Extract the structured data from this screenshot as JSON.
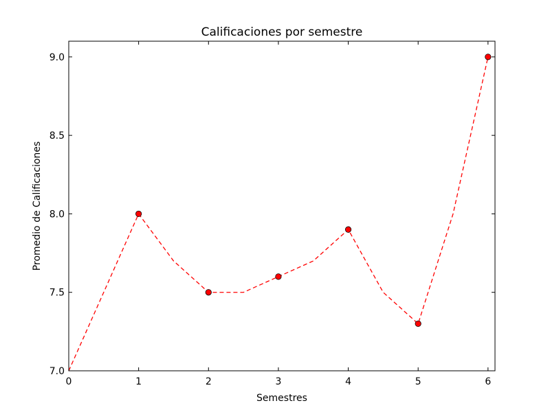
{
  "chart_data": {
    "type": "line",
    "title": "Calificaciones por semestre",
    "xlabel": "Semestres",
    "ylabel": "Promedio de Calificaciones",
    "xlim": [
      0,
      6.1
    ],
    "ylim": [
      7.0,
      9.1
    ],
    "x_ticks": [
      0,
      1,
      2,
      3,
      4,
      5,
      6
    ],
    "x_tick_labels": [
      "0",
      "1",
      "2",
      "3",
      "4",
      "5",
      "6"
    ],
    "y_ticks": [
      7.0,
      7.5,
      8.0,
      8.5,
      9.0
    ],
    "y_tick_labels": [
      "7.0",
      "7.5",
      "8.0",
      "8.5",
      "9.0"
    ],
    "grid": false,
    "series": [
      {
        "line_style": "dashed",
        "line_color": "#ff0000",
        "x": [
          0,
          1,
          1.5,
          2,
          2.5,
          3,
          3.5,
          4,
          4.5,
          5,
          5.5,
          6
        ],
        "y": [
          7.0,
          8.0,
          7.7,
          7.5,
          7.5,
          7.6,
          7.7,
          7.9,
          7.5,
          7.3,
          8.0,
          9.0
        ]
      },
      {
        "marker": "circle",
        "marker_color": "#ff0000",
        "x": [
          1,
          2,
          3,
          4,
          5,
          6
        ],
        "y": [
          8.0,
          7.5,
          7.6,
          7.9,
          7.3,
          9.0
        ]
      }
    ]
  }
}
